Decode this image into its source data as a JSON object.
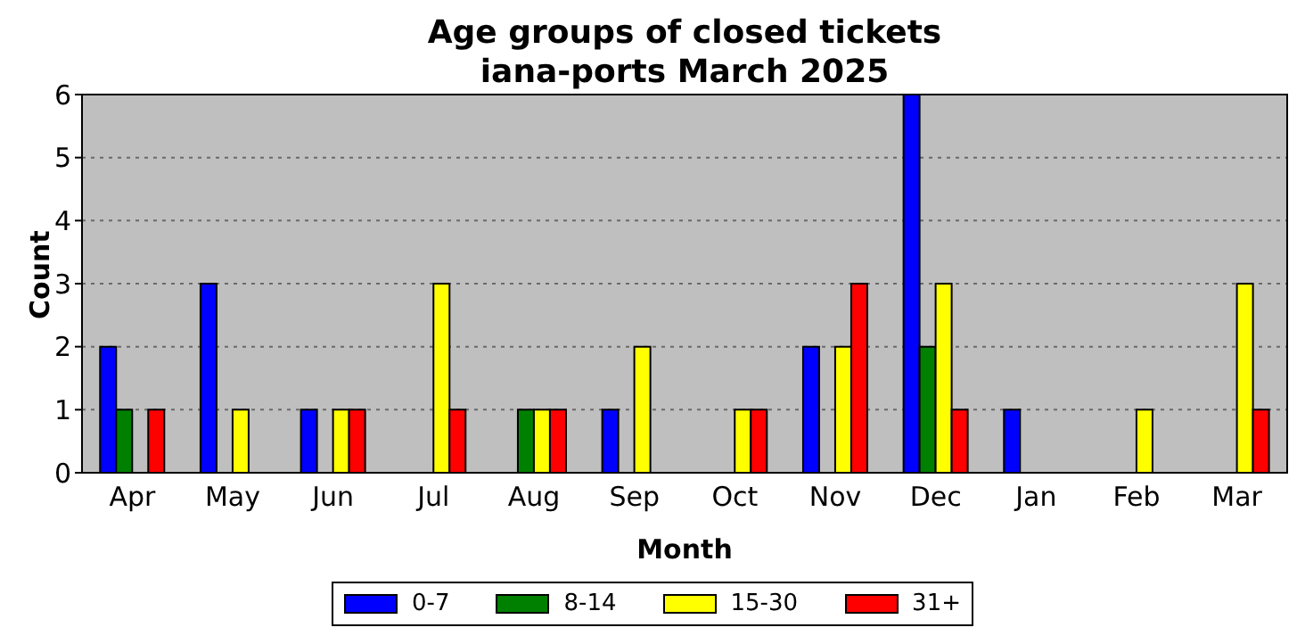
{
  "chart_data": {
    "type": "bar",
    "title": "Age groups of closed tickets\niana-ports March 2025",
    "xlabel": "Month",
    "ylabel": "Count",
    "categories": [
      "Apr",
      "May",
      "Jun",
      "Jul",
      "Aug",
      "Sep",
      "Oct",
      "Nov",
      "Dec",
      "Jan",
      "Feb",
      "Mar"
    ],
    "series": [
      {
        "name": "0-7",
        "color": "#0000ff",
        "values": [
          2,
          3,
          1,
          0,
          0,
          1,
          0,
          2,
          6,
          1,
          0,
          0
        ]
      },
      {
        "name": "8-14",
        "color": "#008000",
        "values": [
          1,
          0,
          0,
          0,
          1,
          0,
          0,
          0,
          2,
          0,
          0,
          0
        ]
      },
      {
        "name": "15-30",
        "color": "#ffff00",
        "values": [
          0,
          1,
          1,
          3,
          1,
          2,
          1,
          2,
          3,
          0,
          1,
          3
        ]
      },
      {
        "name": "31+",
        "color": "#ff0000",
        "values": [
          1,
          0,
          1,
          1,
          1,
          0,
          1,
          3,
          1,
          0,
          0,
          1
        ]
      }
    ],
    "ylim": [
      0,
      6
    ],
    "yticks": [
      0,
      1,
      2,
      3,
      4,
      5,
      6
    ],
    "grid": "y",
    "legend": "bottom"
  }
}
